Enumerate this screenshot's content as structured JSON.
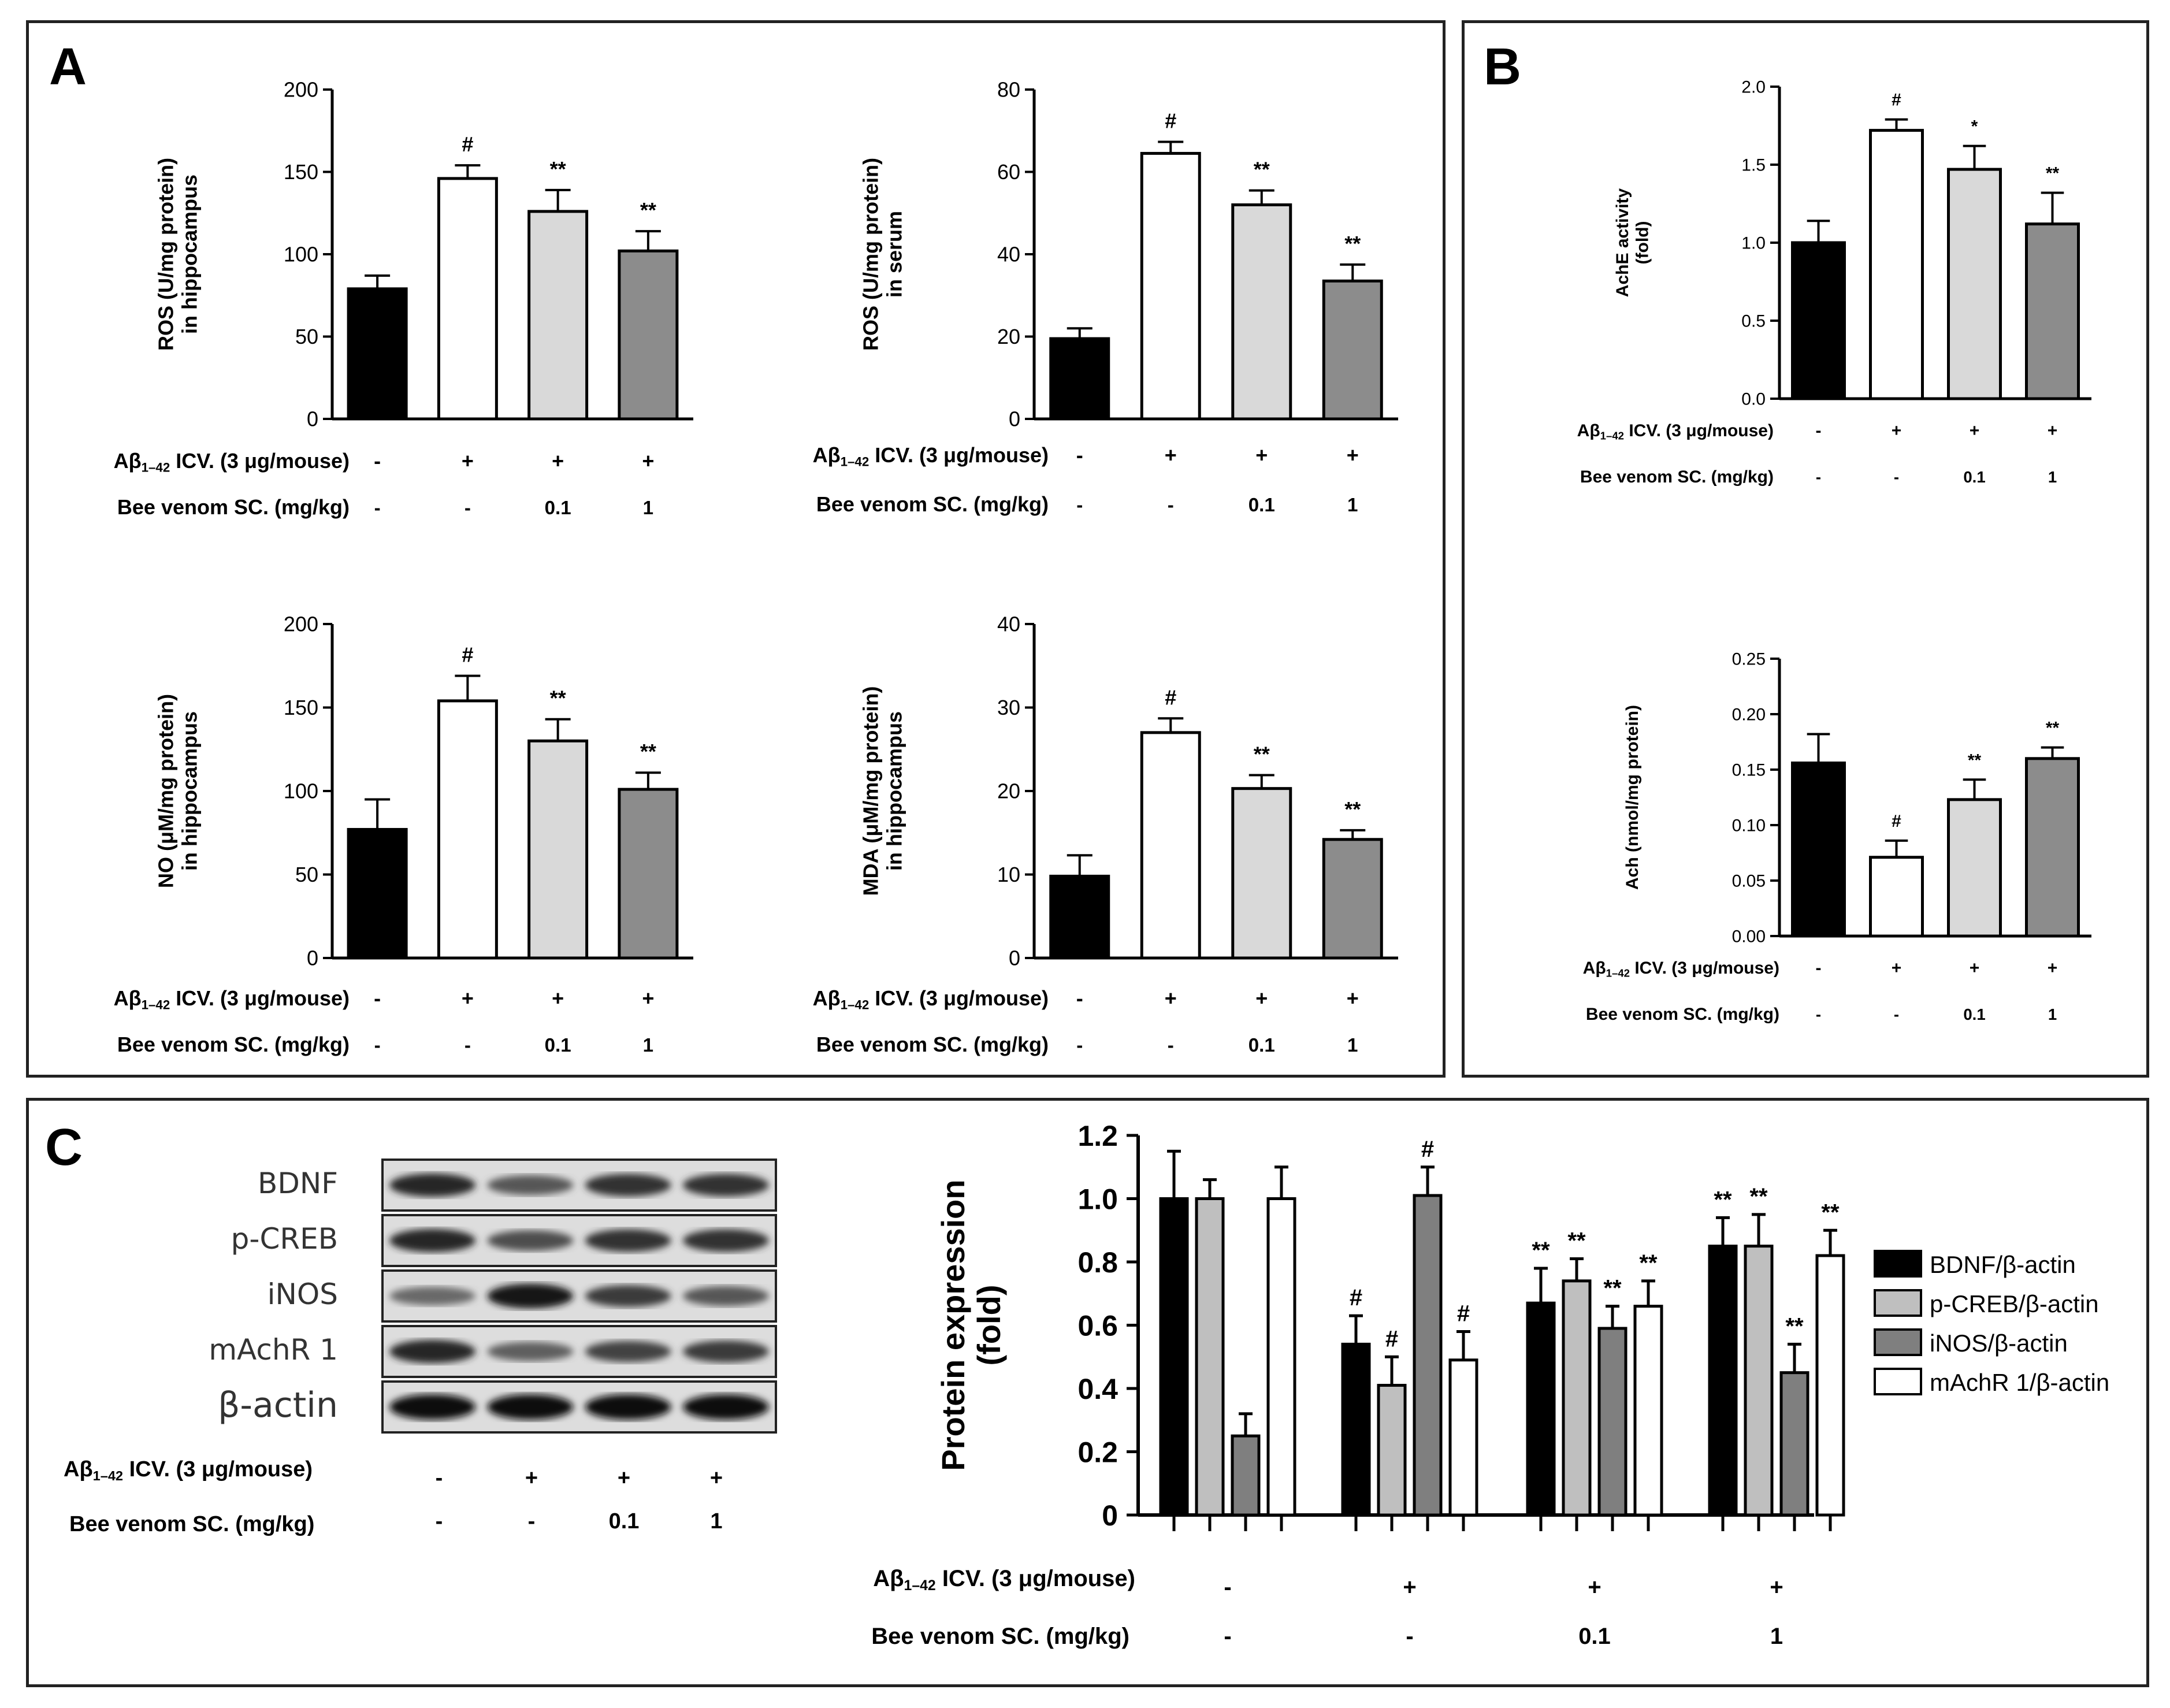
{
  "panels": {
    "A": "A",
    "B": "B",
    "C": "C"
  },
  "treatment_labels": {
    "abeta_prefix": "Aβ",
    "abeta_sub": "1–42",
    "abeta_suffix": " ICV. (3 μg/mouse)",
    "bee": "Bee venom SC. (mg/kg)",
    "abeta_values": [
      "-",
      "+",
      "+",
      "+"
    ],
    "bee_values": [
      "-",
      "-",
      "0.1",
      "1"
    ]
  },
  "chart_data": [
    {
      "id": "ros-hippocampus",
      "type": "bar",
      "ylabel": [
        "ROS (U/mg protein)",
        "in hippocampus"
      ],
      "ylim": [
        0,
        200
      ],
      "yticks": [
        0,
        50,
        100,
        150,
        200
      ],
      "values": [
        79,
        146,
        126,
        102
      ],
      "errors": [
        8,
        8,
        13,
        12
      ],
      "annotations": [
        "",
        "#",
        "**",
        "**"
      ],
      "colors": [
        "#000000",
        "#ffffff",
        "#d9d9d9",
        "#8c8c8c"
      ]
    },
    {
      "id": "ros-serum",
      "type": "bar",
      "ylabel": [
        "ROS (U/mg protein)",
        "in serum"
      ],
      "ylim": [
        0,
        80
      ],
      "yticks": [
        0,
        20,
        40,
        60,
        80
      ],
      "values": [
        19.5,
        64.5,
        52,
        33.5
      ],
      "errors": [
        2.5,
        2.8,
        3.5,
        4
      ],
      "annotations": [
        "",
        "#",
        "**",
        "**"
      ],
      "colors": [
        "#000000",
        "#ffffff",
        "#d9d9d9",
        "#8c8c8c"
      ]
    },
    {
      "id": "no-hippocampus",
      "type": "bar",
      "ylabel": [
        "NO (μM/mg protein)",
        "in hippocampus"
      ],
      "ylim": [
        0,
        200
      ],
      "yticks": [
        0,
        50,
        100,
        150,
        200
      ],
      "values": [
        77,
        154,
        130,
        101
      ],
      "errors": [
        18,
        15,
        13,
        10
      ],
      "annotations": [
        "",
        "#",
        "**",
        "**"
      ],
      "colors": [
        "#000000",
        "#ffffff",
        "#d9d9d9",
        "#8c8c8c"
      ]
    },
    {
      "id": "mda-hippocampus",
      "type": "bar",
      "ylabel": [
        "MDA (μM/mg protein)",
        "in hippocampus"
      ],
      "ylim": [
        0,
        40
      ],
      "yticks": [
        0,
        10,
        20,
        30,
        40
      ],
      "values": [
        9.8,
        27,
        20.3,
        14.2
      ],
      "errors": [
        2.5,
        1.7,
        1.6,
        1.1
      ],
      "annotations": [
        "",
        "#",
        "**",
        "**"
      ],
      "colors": [
        "#000000",
        "#ffffff",
        "#d9d9d9",
        "#8c8c8c"
      ]
    },
    {
      "id": "ache-activity",
      "type": "bar",
      "ylabel": [
        "AchE activity",
        "(fold)"
      ],
      "ylim": [
        0,
        2
      ],
      "yticks": [
        "0.0",
        "0.5",
        "1.0",
        "1.5",
        "2.0"
      ],
      "values": [
        1.0,
        1.72,
        1.47,
        1.12
      ],
      "errors": [
        0.14,
        0.07,
        0.15,
        0.2
      ],
      "annotations": [
        "",
        "#",
        "*",
        "**"
      ],
      "colors": [
        "#000000",
        "#ffffff",
        "#d9d9d9",
        "#8c8c8c"
      ]
    },
    {
      "id": "ach-level",
      "type": "bar",
      "ylabel": [
        "Ach (nmol/mg protein)"
      ],
      "ylim": [
        0,
        0.25
      ],
      "yticks": [
        "0.00",
        "0.05",
        "0.10",
        "0.15",
        "0.20",
        "0.25"
      ],
      "values": [
        0.156,
        0.071,
        0.123,
        0.16
      ],
      "errors": [
        0.026,
        0.015,
        0.018,
        0.01
      ],
      "annotations": [
        "",
        "#",
        "**",
        "**"
      ],
      "colors": [
        "#000000",
        "#ffffff",
        "#d9d9d9",
        "#8c8c8c"
      ]
    },
    {
      "id": "protein-expression",
      "type": "bar",
      "ylabel": [
        "Protein expression",
        "(fold)"
      ],
      "ylim": [
        0,
        1.2
      ],
      "yticks": [
        "0",
        "0.2",
        "0.4",
        "0.6",
        "0.8",
        "1.0",
        "1.2"
      ],
      "legend_position": "right",
      "series": [
        {
          "name": "BDNF/β-actin",
          "color": "#000000",
          "values": [
            1.0,
            0.54,
            0.67,
            0.85
          ],
          "errors": [
            0.15,
            0.09,
            0.11,
            0.09
          ],
          "annotations": [
            "",
            "#",
            "**",
            "**"
          ]
        },
        {
          "name": "p-CREB/β-actin",
          "color": "#bfbfbf",
          "values": [
            1.0,
            0.41,
            0.74,
            0.85
          ],
          "errors": [
            0.06,
            0.09,
            0.07,
            0.1
          ],
          "annotations": [
            "",
            "#",
            "**",
            "**"
          ]
        },
        {
          "name": "iNOS/β-actin",
          "color": "#7f7f7f",
          "values": [
            0.25,
            1.01,
            0.59,
            0.45
          ],
          "errors": [
            0.07,
            0.09,
            0.07,
            0.09
          ],
          "annotations": [
            "",
            "#",
            "**",
            "**"
          ]
        },
        {
          "name": "mAchR 1/β-actin",
          "color": "#ffffff",
          "values": [
            1.0,
            0.49,
            0.66,
            0.82
          ],
          "errors": [
            0.1,
            0.09,
            0.08,
            0.08
          ],
          "annotations": [
            "",
            "#",
            "**",
            "**"
          ]
        }
      ]
    }
  ],
  "western_blot": {
    "labels": [
      "BDNF",
      "p-CREB",
      "iNOS",
      "mAchR 1",
      "β-actin"
    ],
    "intensity": [
      [
        0.85,
        0.6,
        0.8,
        0.8
      ],
      [
        0.85,
        0.65,
        0.8,
        0.8
      ],
      [
        0.5,
        0.95,
        0.75,
        0.6
      ],
      [
        0.85,
        0.55,
        0.7,
        0.75
      ],
      [
        1.0,
        1.0,
        1.0,
        1.0
      ]
    ]
  }
}
